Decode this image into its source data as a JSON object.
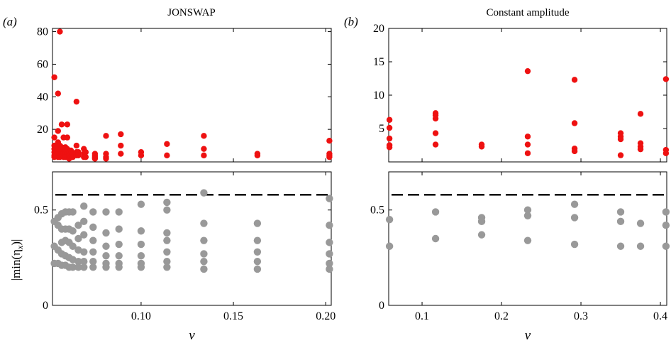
{
  "panels": [
    {
      "label": "(a)",
      "title": "JONSWAP",
      "xlabel": "ν",
      "xlim": [
        0.052,
        0.203
      ],
      "xticks": [
        0.1,
        0.15,
        0.2
      ],
      "xtick_labels": [
        "0.10",
        "0.15",
        "0.20"
      ],
      "top": {
        "ylim": [
          0,
          82
        ],
        "yticks": [
          20,
          40,
          60,
          80
        ],
        "ytick_labels": [
          "20",
          "40",
          "60",
          "80"
        ],
        "color": "#ee1111",
        "points": [
          [
            0.053,
            52
          ],
          [
            0.053,
            15
          ],
          [
            0.053,
            10
          ],
          [
            0.053,
            8
          ],
          [
            0.053,
            6
          ],
          [
            0.053,
            4
          ],
          [
            0.053,
            3
          ],
          [
            0.055,
            42
          ],
          [
            0.055,
            19
          ],
          [
            0.055,
            12
          ],
          [
            0.055,
            9
          ],
          [
            0.055,
            7
          ],
          [
            0.055,
            5
          ],
          [
            0.055,
            3
          ],
          [
            0.056,
            80
          ],
          [
            0.056,
            10
          ],
          [
            0.056,
            8
          ],
          [
            0.056,
            7
          ],
          [
            0.056,
            5
          ],
          [
            0.056,
            3
          ],
          [
            0.057,
            23
          ],
          [
            0.057,
            9
          ],
          [
            0.057,
            6
          ],
          [
            0.057,
            5
          ],
          [
            0.057,
            4
          ],
          [
            0.058,
            15
          ],
          [
            0.058,
            8
          ],
          [
            0.058,
            6
          ],
          [
            0.058,
            5
          ],
          [
            0.058,
            3
          ],
          [
            0.059,
            9
          ],
          [
            0.059,
            7
          ],
          [
            0.059,
            5
          ],
          [
            0.059,
            4
          ],
          [
            0.059,
            3
          ],
          [
            0.06,
            23
          ],
          [
            0.06,
            15
          ],
          [
            0.06,
            8
          ],
          [
            0.06,
            5
          ],
          [
            0.06,
            3
          ],
          [
            0.061,
            6
          ],
          [
            0.061,
            4
          ],
          [
            0.061,
            2
          ],
          [
            0.062,
            7
          ],
          [
            0.062,
            5
          ],
          [
            0.062,
            3
          ],
          [
            0.063,
            5
          ],
          [
            0.063,
            3
          ],
          [
            0.065,
            37
          ],
          [
            0.065,
            10
          ],
          [
            0.065,
            6
          ],
          [
            0.065,
            4
          ],
          [
            0.066,
            6
          ],
          [
            0.066,
            4
          ],
          [
            0.069,
            8
          ],
          [
            0.069,
            5
          ],
          [
            0.069,
            3
          ],
          [
            0.07,
            6
          ],
          [
            0.07,
            3
          ],
          [
            0.075,
            5
          ],
          [
            0.075,
            4
          ],
          [
            0.075,
            3
          ],
          [
            0.075,
            2
          ],
          [
            0.081,
            16
          ],
          [
            0.081,
            5
          ],
          [
            0.081,
            3
          ],
          [
            0.081,
            2
          ],
          [
            0.089,
            17
          ],
          [
            0.089,
            10
          ],
          [
            0.089,
            5
          ],
          [
            0.1,
            6
          ],
          [
            0.1,
            4
          ],
          [
            0.114,
            11
          ],
          [
            0.114,
            4
          ],
          [
            0.134,
            16
          ],
          [
            0.134,
            8
          ],
          [
            0.134,
            4
          ],
          [
            0.163,
            5
          ],
          [
            0.163,
            4
          ],
          [
            0.202,
            13
          ],
          [
            0.202,
            5
          ],
          [
            0.202,
            4
          ],
          [
            0.202,
            3
          ]
        ]
      },
      "bottom": {
        "ylim": [
          0,
          0.7
        ],
        "yticks": [
          0,
          0.5
        ],
        "ytick_labels": [
          "0",
          "0.5"
        ],
        "color": "#999999",
        "dashed_line_y": 0.58,
        "ylabel_text": "|min(η",
        "ylabel_sub": "x",
        "ylabel_end": ")|",
        "points": [
          [
            0.053,
            0.44
          ],
          [
            0.053,
            0.31
          ],
          [
            0.053,
            0.22
          ],
          [
            0.055,
            0.46
          ],
          [
            0.055,
            0.42
          ],
          [
            0.055,
            0.29
          ],
          [
            0.055,
            0.22
          ],
          [
            0.057,
            0.48
          ],
          [
            0.057,
            0.4
          ],
          [
            0.057,
            0.33
          ],
          [
            0.057,
            0.27
          ],
          [
            0.057,
            0.21
          ],
          [
            0.059,
            0.49
          ],
          [
            0.059,
            0.4
          ],
          [
            0.059,
            0.34
          ],
          [
            0.059,
            0.26
          ],
          [
            0.059,
            0.21
          ],
          [
            0.061,
            0.49
          ],
          [
            0.061,
            0.4
          ],
          [
            0.061,
            0.33
          ],
          [
            0.061,
            0.25
          ],
          [
            0.061,
            0.2
          ],
          [
            0.063,
            0.49
          ],
          [
            0.063,
            0.39
          ],
          [
            0.063,
            0.31
          ],
          [
            0.063,
            0.24
          ],
          [
            0.063,
            0.2
          ],
          [
            0.066,
            0.42
          ],
          [
            0.066,
            0.35
          ],
          [
            0.066,
            0.29
          ],
          [
            0.066,
            0.23
          ],
          [
            0.066,
            0.2
          ],
          [
            0.069,
            0.52
          ],
          [
            0.069,
            0.44
          ],
          [
            0.069,
            0.37
          ],
          [
            0.069,
            0.28
          ],
          [
            0.069,
            0.23
          ],
          [
            0.069,
            0.2
          ],
          [
            0.074,
            0.49
          ],
          [
            0.074,
            0.41
          ],
          [
            0.074,
            0.34
          ],
          [
            0.074,
            0.28
          ],
          [
            0.074,
            0.23
          ],
          [
            0.074,
            0.2
          ],
          [
            0.081,
            0.49
          ],
          [
            0.081,
            0.38
          ],
          [
            0.081,
            0.31
          ],
          [
            0.081,
            0.26
          ],
          [
            0.081,
            0.22
          ],
          [
            0.081,
            0.2
          ],
          [
            0.088,
            0.49
          ],
          [
            0.088,
            0.4
          ],
          [
            0.088,
            0.32
          ],
          [
            0.088,
            0.26
          ],
          [
            0.088,
            0.22
          ],
          [
            0.088,
            0.2
          ],
          [
            0.1,
            0.53
          ],
          [
            0.1,
            0.39
          ],
          [
            0.1,
            0.32
          ],
          [
            0.1,
            0.26
          ],
          [
            0.1,
            0.22
          ],
          [
            0.1,
            0.2
          ],
          [
            0.114,
            0.54
          ],
          [
            0.114,
            0.5
          ],
          [
            0.114,
            0.38
          ],
          [
            0.114,
            0.34
          ],
          [
            0.114,
            0.28
          ],
          [
            0.114,
            0.23
          ],
          [
            0.114,
            0.2
          ],
          [
            0.134,
            0.59
          ],
          [
            0.134,
            0.43
          ],
          [
            0.134,
            0.34
          ],
          [
            0.134,
            0.27
          ],
          [
            0.134,
            0.23
          ],
          [
            0.134,
            0.19
          ],
          [
            0.163,
            0.43
          ],
          [
            0.163,
            0.34
          ],
          [
            0.163,
            0.28
          ],
          [
            0.163,
            0.23
          ],
          [
            0.163,
            0.19
          ],
          [
            0.202,
            0.56
          ],
          [
            0.202,
            0.42
          ],
          [
            0.202,
            0.33
          ],
          [
            0.202,
            0.27
          ],
          [
            0.202,
            0.22
          ],
          [
            0.202,
            0.19
          ]
        ]
      }
    },
    {
      "label": "(b)",
      "title": "Constant amplitude",
      "xlabel": "ν",
      "xlim": [
        0.058,
        0.408
      ],
      "xticks": [
        0.1,
        0.2,
        0.3,
        0.4
      ],
      "xtick_labels": [
        "0.1",
        "0.2",
        "0.3",
        "0.4"
      ],
      "top": {
        "ylim": [
          0,
          20
        ],
        "yticks": [
          5,
          10,
          15,
          20
        ],
        "ytick_labels": [
          "5",
          "10",
          "15",
          "20"
        ],
        "color": "#ee1111",
        "points": [
          [
            0.059,
            6.3
          ],
          [
            0.059,
            5.1
          ],
          [
            0.059,
            3.5
          ],
          [
            0.059,
            2.5
          ],
          [
            0.059,
            2.2
          ],
          [
            0.117,
            7.3
          ],
          [
            0.117,
            7.0
          ],
          [
            0.117,
            6.5
          ],
          [
            0.117,
            4.3
          ],
          [
            0.117,
            2.6
          ],
          [
            0.175,
            2.6
          ],
          [
            0.175,
            2.3
          ],
          [
            0.233,
            13.6
          ],
          [
            0.233,
            3.8
          ],
          [
            0.233,
            2.6
          ],
          [
            0.233,
            1.3
          ],
          [
            0.292,
            12.3
          ],
          [
            0.292,
            5.8
          ],
          [
            0.292,
            2.0
          ],
          [
            0.292,
            1.6
          ],
          [
            0.35,
            4.3
          ],
          [
            0.35,
            3.8
          ],
          [
            0.35,
            3.4
          ],
          [
            0.35,
            1.0
          ],
          [
            0.375,
            7.2
          ],
          [
            0.375,
            2.8
          ],
          [
            0.375,
            2.3
          ],
          [
            0.375,
            1.9
          ],
          [
            0.407,
            12.4
          ],
          [
            0.407,
            1.8
          ],
          [
            0.407,
            1.3
          ]
        ]
      },
      "bottom": {
        "ylim": [
          0,
          0.7
        ],
        "yticks": [
          0,
          0.5
        ],
        "ytick_labels": [
          "0",
          "0.5"
        ],
        "color": "#999999",
        "dashed_line_y": 0.58,
        "points": [
          [
            0.059,
            0.45
          ],
          [
            0.059,
            0.31
          ],
          [
            0.117,
            0.49
          ],
          [
            0.117,
            0.35
          ],
          [
            0.175,
            0.46
          ],
          [
            0.175,
            0.44
          ],
          [
            0.175,
            0.37
          ],
          [
            0.233,
            0.5
          ],
          [
            0.233,
            0.47
          ],
          [
            0.233,
            0.34
          ],
          [
            0.292,
            0.53
          ],
          [
            0.292,
            0.46
          ],
          [
            0.292,
            0.32
          ],
          [
            0.35,
            0.49
          ],
          [
            0.35,
            0.44
          ],
          [
            0.35,
            0.31
          ],
          [
            0.375,
            0.43
          ],
          [
            0.375,
            0.31
          ],
          [
            0.407,
            0.49
          ],
          [
            0.407,
            0.42
          ],
          [
            0.407,
            0.31
          ]
        ]
      }
    }
  ]
}
